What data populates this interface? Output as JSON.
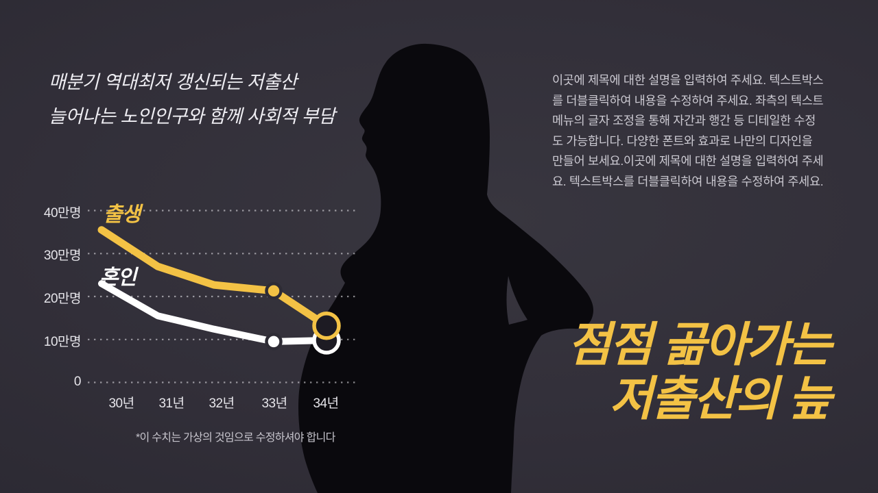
{
  "slide": {
    "background_center": "#38363F",
    "background_edge": "#282631",
    "silhouette_color": "#0A090D",
    "silhouette_subject": "pregnant-woman-profile-facing-left",
    "white": "#EFEEF3"
  },
  "headline": {
    "line1": "매분기 역대최저 갱신되는 저출산",
    "line2": "늘어나는 노인인구와 함께 사회적 부담"
  },
  "description": {
    "text": "이곳에 제목에 대한 설명을 입력하여 주세요. 텍스트박스를 더블클릭하여 내용을 수정하여 주세요. 좌측의 텍스트 메뉴의 글자 조정을 통해 자간과 행간 등 디테일한 수정도 가능합니다. 다양한 폰트와 효과로 나만의 디자인을 만들어 보세요.이곳에 제목에 대한 설명을 입력하여 주세요. 텍스트박스를 더블클릭하여 내용을 수정하여 주세요."
  },
  "title": {
    "line1": "점점 곪아가는",
    "line2": "저출산의 늪",
    "color": "#F3C245"
  },
  "footnote": "*이 수치는 가상의 것임으로 수정하셔야 합니다",
  "chart_data": {
    "type": "line",
    "categories": [
      "30년",
      "31년",
      "32년",
      "33년",
      "34년"
    ],
    "unit": "만명",
    "ylim": [
      0,
      45
    ],
    "grid": "dotted-horizontal",
    "legend_position": "labels above each line start (left side)",
    "y_ticks": [
      {
        "label": "40만명",
        "value": 40
      },
      {
        "label": "30만명",
        "value": 30
      },
      {
        "label": "20만명",
        "value": 20
      },
      {
        "label": "10만명",
        "value": 10
      },
      {
        "label": "0",
        "value": 0
      }
    ],
    "series": [
      {
        "name": "출생",
        "color": "#F3C245",
        "stroke_width": 11,
        "values": [
          35.5,
          27,
          22.7,
          21.3,
          13.2
        ],
        "markers": {
          "dot_index": 3,
          "ring_index": 4
        }
      },
      {
        "name": "혼인",
        "color": "#FFFFFF",
        "stroke_width": 10,
        "values": [
          23,
          15.5,
          12.4,
          9.5,
          9.8
        ],
        "markers": {
          "dot_index": 3,
          "ring_index": 4
        }
      }
    ]
  }
}
